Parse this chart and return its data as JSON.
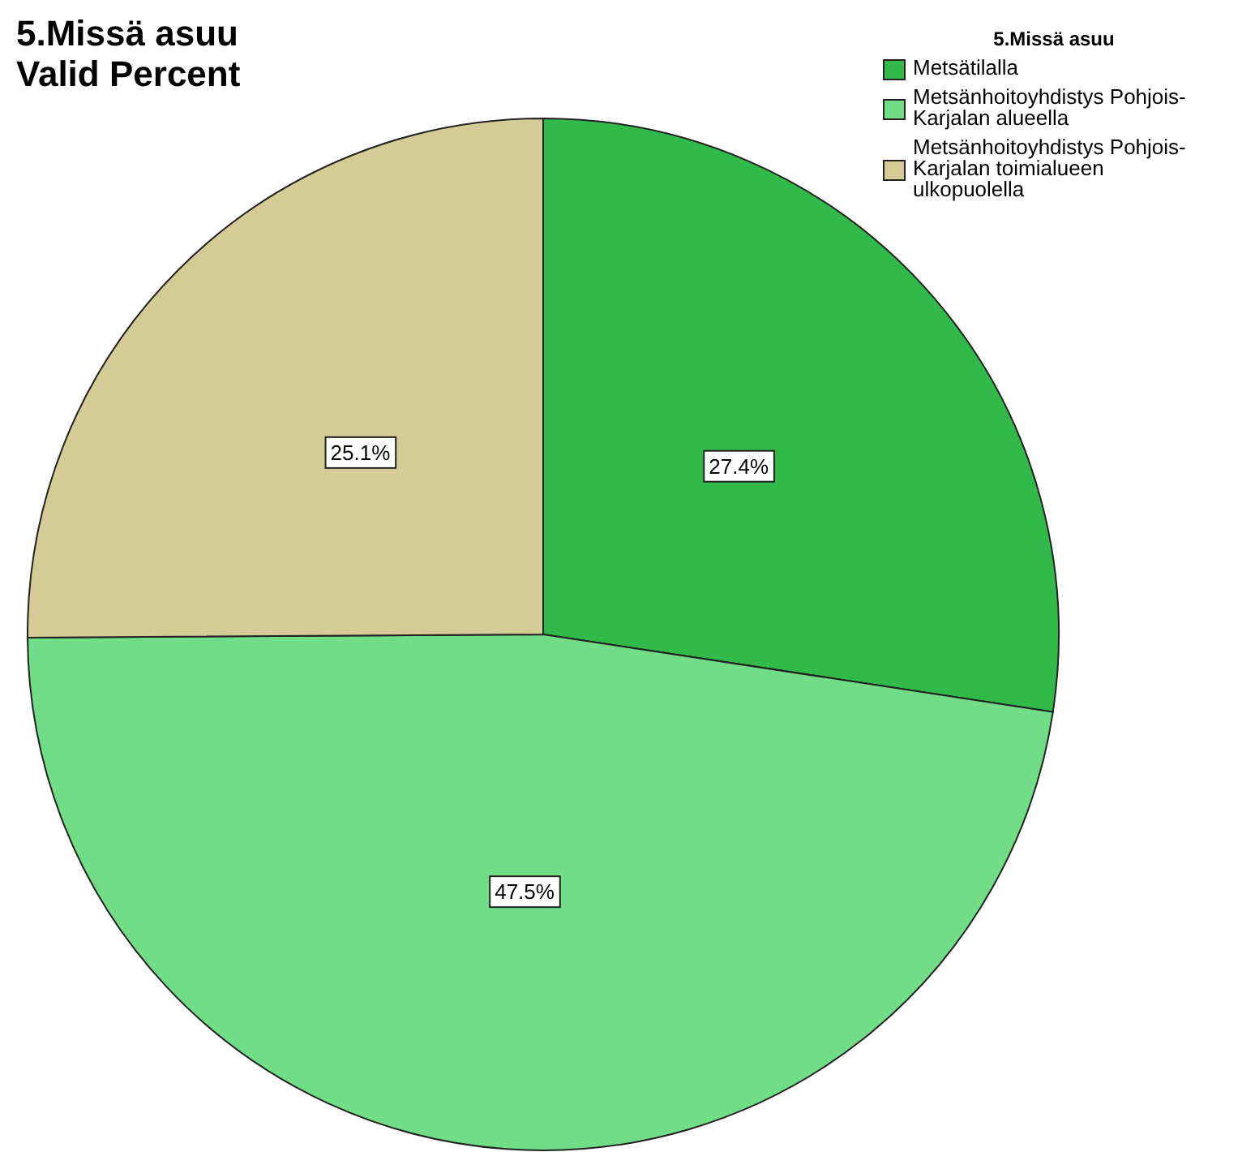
{
  "chart_data": {
    "type": "pie",
    "title": "5.Missä asuu",
    "subtitle": "Valid Percent",
    "legend_title": "5.Missä asuu",
    "categories": [
      "Metsätilalla",
      "Metsänhoitoyhdistys Pohjois-Karjalan alueella",
      "Metsänhoitoyhdistys Pohjois-Karjalan toimialueen ulkopuolella"
    ],
    "values": [
      27.4,
      47.5,
      25.1
    ],
    "colors": [
      "#31b94a",
      "#72dd87",
      "#d4cb97"
    ],
    "value_labels": [
      "27.4%",
      "47.5%",
      "25.1%"
    ],
    "legend": "top right"
  }
}
